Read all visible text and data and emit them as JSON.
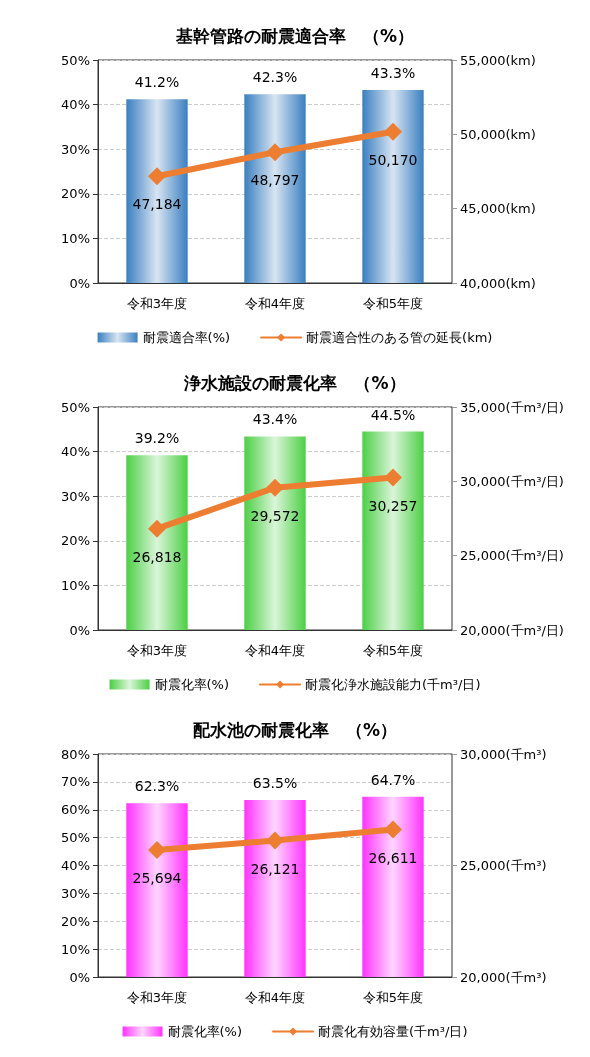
{
  "chart_data": [
    {
      "type": "bar",
      "title": "基幹管路の耐震適合率　（%）",
      "categories": [
        "令和3年度",
        "令和4年度",
        "令和5年度"
      ],
      "series": [
        {
          "name": "耐震適合率(%)",
          "color": "#3a7fc0",
          "values": [
            41.2,
            42.3,
            43.3
          ],
          "value_labels": [
            "41.2%",
            "42.3%",
            "43.3%"
          ]
        },
        {
          "name": "耐震適合性のある管の延長(km)",
          "type": "line",
          "axis": "y2",
          "color": "#ed7d31",
          "values": [
            47184,
            48797,
            50170
          ],
          "value_labels": [
            "47,184",
            "48,797",
            "50,170"
          ]
        }
      ],
      "ylim": [
        0,
        50
      ],
      "yticks": [
        {
          "value": 0,
          "label": "0%"
        },
        {
          "value": 10,
          "label": "10%"
        },
        {
          "value": 20,
          "label": "20%"
        },
        {
          "value": 30,
          "label": "30%"
        },
        {
          "value": 40,
          "label": "40%"
        },
        {
          "value": 50,
          "label": "50%"
        }
      ],
      "y2lim": [
        40000,
        55000
      ],
      "y2ticks": [
        {
          "value": 40000,
          "label": "40,000(km)"
        },
        {
          "value": 45000,
          "label": "45,000(km)"
        },
        {
          "value": 50000,
          "label": "50,000(km)"
        },
        {
          "value": 55000,
          "label": "55,000(km)"
        }
      ],
      "grid": "y",
      "legend": "bottom",
      "marker": "diamond"
    },
    {
      "type": "bar",
      "title": "浄水施設の耐震化率　（%）",
      "categories": [
        "令和3年度",
        "令和4年度",
        "令和5年度"
      ],
      "series": [
        {
          "name": "耐震化率(%)",
          "color": "#4ccf44",
          "values": [
            39.2,
            43.4,
            44.5
          ],
          "value_labels": [
            "39.2%",
            "43.4%",
            "44.5%"
          ]
        },
        {
          "name": "耐震化浄水施設能力(千m³/日)",
          "type": "line",
          "axis": "y2",
          "color": "#ed7d31",
          "values": [
            26818,
            29572,
            30257
          ],
          "value_labels": [
            "26,818",
            "29,572",
            "30,257"
          ]
        }
      ],
      "ylim": [
        0,
        50
      ],
      "yticks": [
        {
          "value": 0,
          "label": "0%"
        },
        {
          "value": 10,
          "label": "10%"
        },
        {
          "value": 20,
          "label": "20%"
        },
        {
          "value": 30,
          "label": "30%"
        },
        {
          "value": 40,
          "label": "40%"
        },
        {
          "value": 50,
          "label": "50%"
        }
      ],
      "y2lim": [
        20000,
        35000
      ],
      "y2ticks": [
        {
          "value": 20000,
          "label": "20,000(千m³/日)"
        },
        {
          "value": 25000,
          "label": "25,000(千m³/日)"
        },
        {
          "value": 30000,
          "label": "30,000(千m³/日)"
        },
        {
          "value": 35000,
          "label": "35,000(千m³/日)"
        }
      ],
      "grid": "y",
      "legend": "bottom",
      "marker": "diamond"
    },
    {
      "type": "bar",
      "title": "配水池の耐震化率　（%）",
      "categories": [
        "令和3年度",
        "令和4年度",
        "令和5年度"
      ],
      "series": [
        {
          "name": "耐震化率(%)",
          "color": "#ff33ff",
          "values": [
            62.3,
            63.5,
            64.7
          ],
          "value_labels": [
            "62.3%",
            "63.5%",
            "64.7%"
          ]
        },
        {
          "name": "耐震化有効容量(千m³/日)",
          "type": "line",
          "axis": "y2",
          "color": "#ed7d31",
          "values": [
            25694,
            26121,
            26611
          ],
          "value_labels": [
            "25,694",
            "26,121",
            "26,611"
          ]
        }
      ],
      "ylim": [
        0,
        80
      ],
      "yticks": [
        {
          "value": 0,
          "label": "0%"
        },
        {
          "value": 10,
          "label": "10%"
        },
        {
          "value": 20,
          "label": "20%"
        },
        {
          "value": 30,
          "label": "30%"
        },
        {
          "value": 40,
          "label": "40%"
        },
        {
          "value": 50,
          "label": "50%"
        },
        {
          "value": 60,
          "label": "60%"
        },
        {
          "value": 70,
          "label": "70%"
        },
        {
          "value": 80,
          "label": "80%"
        }
      ],
      "y2lim": [
        20000,
        30000
      ],
      "y2ticks": [
        {
          "value": 20000,
          "label": "20,000(千m³)"
        },
        {
          "value": 25000,
          "label": "25,000(千m³)"
        },
        {
          "value": 30000,
          "label": "30,000(千m³)"
        }
      ],
      "grid": "y",
      "legend": "bottom",
      "marker": "diamond"
    }
  ]
}
